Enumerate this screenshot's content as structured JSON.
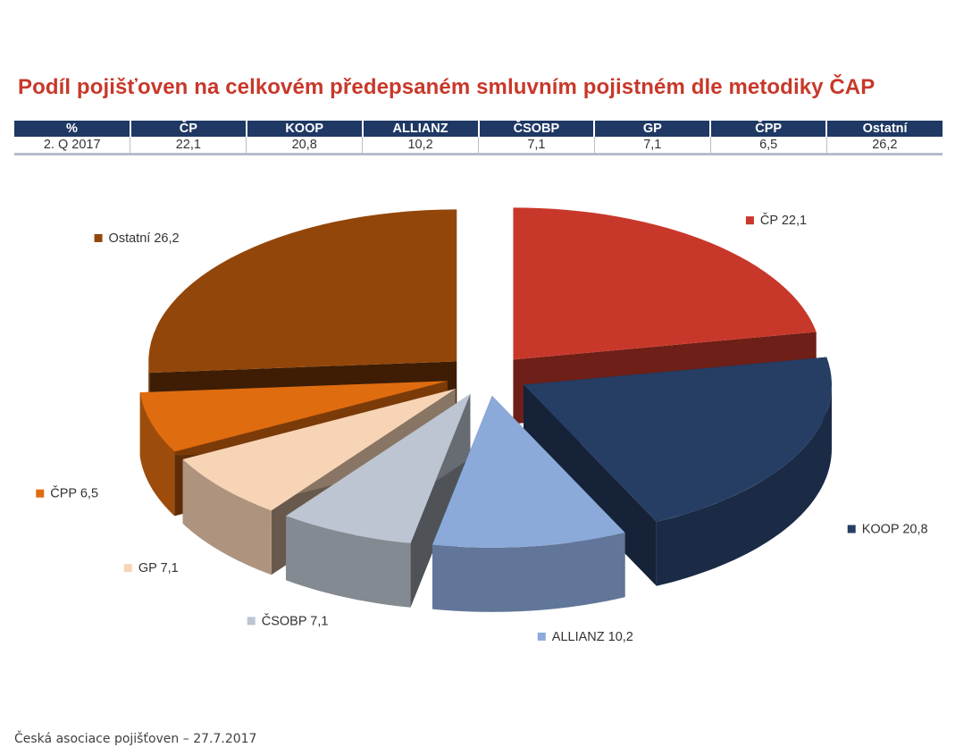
{
  "title": "Podíl pojišťoven na celkovém předepsaném smluvním pojistném dle metodiky ČAP",
  "table": {
    "headers": [
      "%",
      "ČP",
      "KOOP",
      "ALLIANZ",
      "ČSOBP",
      "GP",
      "ČPP",
      "Ostatní"
    ],
    "row": [
      "2. Q 2017",
      "22,1",
      "20,8",
      "10,2",
      "7,1",
      "7,1",
      "6,5",
      "26,2"
    ]
  },
  "chart_data": {
    "type": "pie",
    "categories": [
      "ČP",
      "KOOP",
      "ALLIANZ",
      "ČSOBP",
      "GP",
      "ČPP",
      "Ostatní"
    ],
    "values": [
      22.1,
      20.8,
      10.2,
      7.1,
      7.1,
      6.5,
      26.2
    ],
    "labels": [
      "ČP 22,1",
      "KOOP 20,8",
      "ALLIANZ 10,2",
      "ČSOBP 7,1",
      "GP 7,1",
      "ČPP 6,5",
      "Ostatní 26,2"
    ],
    "colors": [
      "#c8382a",
      "#263d64",
      "#8ba9d9",
      "#bcc5d1",
      "#f8d4b6",
      "#e06c10",
      "#93460a"
    ],
    "exploded": true,
    "three_d": true,
    "legend": "labels next to slices"
  },
  "footer": "Česká asociace pojišťoven – 27.7.2017"
}
